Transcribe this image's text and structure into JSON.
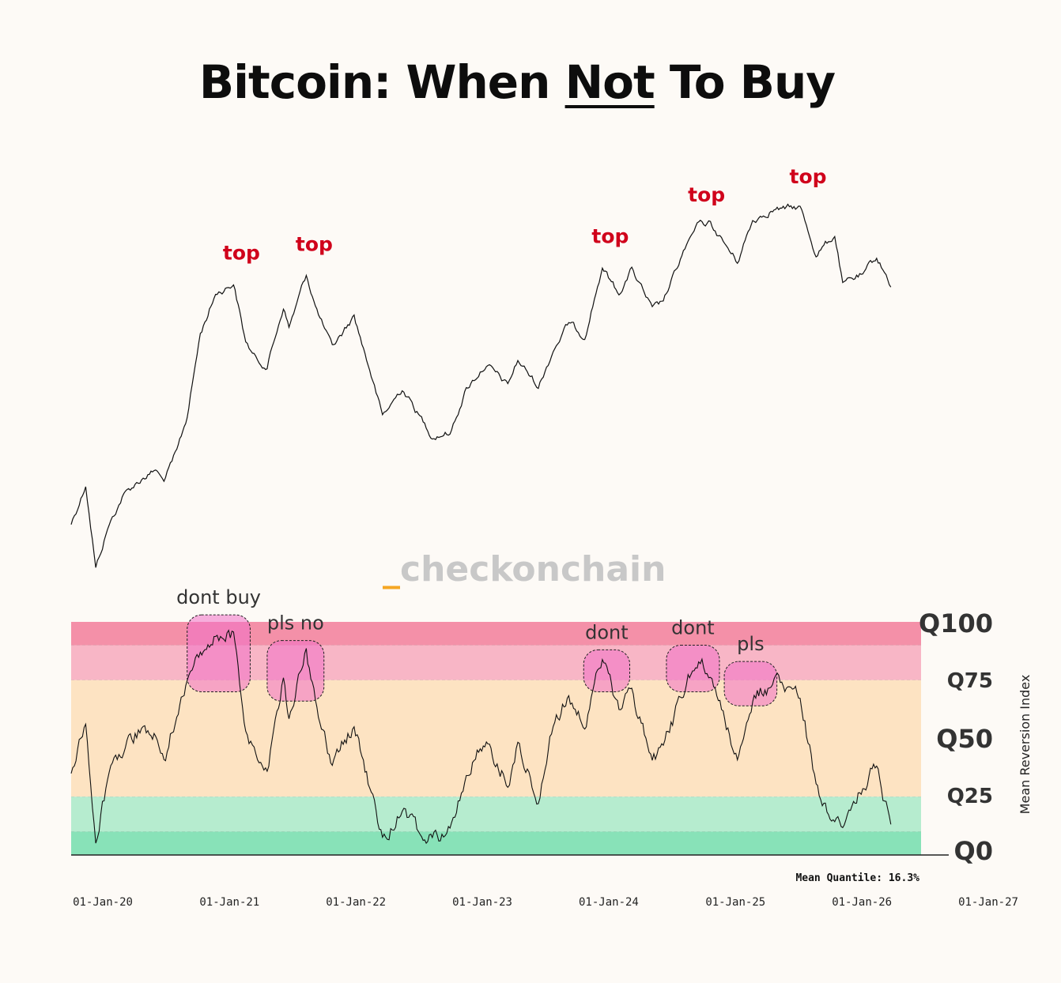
{
  "title": {
    "before": "Bitcoin: When ",
    "emphasis": "Not",
    "after": " To Buy"
  },
  "watermark": {
    "prefix": "_",
    "text": "checkonchain"
  },
  "colors": {
    "price_line": "#111111",
    "band_top": "#f490a8",
    "band_upper": "#f8b6c6",
    "band_mid": "#fde3c2",
    "band_low": "#b6eccf",
    "band_bottom": "#88e2b8",
    "callout_fill": "#f06fc7",
    "top_label": "#d0021b",
    "watermark_accent": "#f5a623"
  },
  "chart_data": {
    "type": "line",
    "x_range": [
      "2020-01-01",
      "2027-01-01"
    ],
    "x_ticks": [
      "01-Jan-20",
      "01-Jan-21",
      "01-Jan-22",
      "01-Jan-23",
      "01-Jan-24",
      "01-Jan-25",
      "01-Jan-26",
      "01-Jan-27"
    ],
    "price_panel": {
      "scale": "log",
      "series_name": "",
      "points": [
        [
          "2020-01-01",
          7200
        ],
        [
          "2020-02-12",
          10300
        ],
        [
          "2020-03-12",
          4900
        ],
        [
          "2020-04-15",
          6900
        ],
        [
          "2020-06-01",
          9500
        ],
        [
          "2020-07-27",
          11000
        ],
        [
          "2020-09-01",
          11700
        ],
        [
          "2020-09-25",
          10500
        ],
        [
          "2020-11-01",
          13800
        ],
        [
          "2020-12-01",
          19000
        ],
        [
          "2021-01-08",
          40000
        ],
        [
          "2021-02-21",
          57000
        ],
        [
          "2021-04-14",
          63000
        ],
        [
          "2021-05-19",
          37000
        ],
        [
          "2021-06-22",
          31000
        ],
        [
          "2021-07-20",
          30000
        ],
        [
          "2021-09-05",
          51000
        ],
        [
          "2021-09-21",
          42000
        ],
        [
          "2021-11-10",
          68000
        ],
        [
          "2021-12-15",
          47000
        ],
        [
          "2022-01-24",
          35000
        ],
        [
          "2022-03-28",
          47000
        ],
        [
          "2022-05-12",
          29000
        ],
        [
          "2022-06-18",
          19000
        ],
        [
          "2022-08-14",
          24500
        ],
        [
          "2022-09-30",
          19400
        ],
        [
          "2022-11-09",
          16000
        ],
        [
          "2022-12-30",
          16500
        ],
        [
          "2023-02-15",
          24500
        ],
        [
          "2023-04-14",
          30500
        ],
        [
          "2023-06-15",
          25000
        ],
        [
          "2023-07-14",
          31500
        ],
        [
          "2023-09-11",
          25000
        ],
        [
          "2023-10-24",
          34500
        ],
        [
          "2023-12-08",
          44000
        ],
        [
          "2024-01-23",
          39000
        ],
        [
          "2024-03-14",
          73000
        ],
        [
          "2024-05-01",
          57000
        ],
        [
          "2024-06-07",
          71000
        ],
        [
          "2024-08-05",
          50000
        ],
        [
          "2024-09-06",
          53000
        ],
        [
          "2024-11-12",
          89000
        ],
        [
          "2024-12-17",
          106000
        ],
        [
          "2025-01-20",
          108000
        ],
        [
          "2025-04-08",
          76000
        ],
        [
          "2025-05-22",
          111000
        ],
        [
          "2025-07-14",
          122000
        ],
        [
          "2025-08-14",
          123000
        ],
        [
          "2025-10-06",
          125000
        ],
        [
          "2025-11-21",
          82000
        ],
        [
          "2026-01-14",
          97000
        ],
        [
          "2026-02-06",
          63000
        ],
        [
          "2026-04-05",
          68000
        ],
        [
          "2026-05-15",
          80000
        ],
        [
          "2026-06-25",
          62000
        ]
      ],
      "annotations": [
        "top",
        "top",
        "top",
        "top",
        "top"
      ]
    },
    "oscillator_panel": {
      "axis_title": "Mean Reversion Index",
      "quantile_labels": [
        "Q100",
        "Q75",
        "Q50",
        "Q25",
        "Q0"
      ],
      "bands": [
        {
          "from": 0.9,
          "to": 1.0
        },
        {
          "from": 0.75,
          "to": 0.9
        },
        {
          "from": 0.25,
          "to": 0.75
        },
        {
          "from": 0.1,
          "to": 0.25
        },
        {
          "from": 0.0,
          "to": 0.1
        }
      ],
      "points": [
        [
          "2020-01-01",
          0.35
        ],
        [
          "2020-02-12",
          0.55
        ],
        [
          "2020-03-12",
          0.05
        ],
        [
          "2020-04-15",
          0.32
        ],
        [
          "2020-06-01",
          0.45
        ],
        [
          "2020-07-27",
          0.55
        ],
        [
          "2020-09-01",
          0.5
        ],
        [
          "2020-09-25",
          0.4
        ],
        [
          "2020-11-01",
          0.6
        ],
        [
          "2020-12-01",
          0.75
        ],
        [
          "2021-01-08",
          0.88
        ],
        [
          "2021-02-21",
          0.93
        ],
        [
          "2021-04-14",
          0.95
        ],
        [
          "2021-05-19",
          0.55
        ],
        [
          "2021-06-22",
          0.4
        ],
        [
          "2021-07-20",
          0.35
        ],
        [
          "2021-09-05",
          0.75
        ],
        [
          "2021-09-21",
          0.6
        ],
        [
          "2021-11-10",
          0.88
        ],
        [
          "2021-12-15",
          0.58
        ],
        [
          "2022-01-24",
          0.4
        ],
        [
          "2022-03-28",
          0.55
        ],
        [
          "2022-05-12",
          0.3
        ],
        [
          "2022-06-18",
          0.07
        ],
        [
          "2022-08-14",
          0.2
        ],
        [
          "2022-09-30",
          0.1
        ],
        [
          "2022-11-09",
          0.06
        ],
        [
          "2022-12-30",
          0.1
        ],
        [
          "2023-02-15",
          0.35
        ],
        [
          "2023-04-14",
          0.5
        ],
        [
          "2023-06-15",
          0.3
        ],
        [
          "2023-07-14",
          0.48
        ],
        [
          "2023-09-11",
          0.25
        ],
        [
          "2023-10-24",
          0.55
        ],
        [
          "2023-12-08",
          0.68
        ],
        [
          "2024-01-23",
          0.55
        ],
        [
          "2024-03-14",
          0.85
        ],
        [
          "2024-05-01",
          0.6
        ],
        [
          "2024-06-07",
          0.7
        ],
        [
          "2024-08-05",
          0.4
        ],
        [
          "2024-09-06",
          0.45
        ],
        [
          "2024-11-12",
          0.75
        ],
        [
          "2024-12-17",
          0.85
        ],
        [
          "2025-01-20",
          0.78
        ],
        [
          "2025-04-08",
          0.4
        ],
        [
          "2025-05-22",
          0.68
        ],
        [
          "2025-07-14",
          0.72
        ],
        [
          "2025-08-14",
          0.74
        ],
        [
          "2025-10-06",
          0.68
        ],
        [
          "2025-11-21",
          0.3
        ],
        [
          "2026-01-14",
          0.15
        ],
        [
          "2026-02-06",
          0.12
        ],
        [
          "2026-04-05",
          0.3
        ],
        [
          "2026-05-15",
          0.38
        ],
        [
          "2026-06-25",
          0.12
        ]
      ],
      "callouts": [
        {
          "label": "dont buy",
          "from": "2020-12-01",
          "to": "2021-06-01",
          "low": 0.7,
          "high": 1.03
        },
        {
          "label": "pls no",
          "from": "2021-07-20",
          "to": "2021-12-31",
          "low": 0.66,
          "high": 0.92
        },
        {
          "label": "dont",
          "from": "2024-01-20",
          "to": "2024-06-01",
          "low": 0.7,
          "high": 0.88
        },
        {
          "label": "dont",
          "from": "2024-09-15",
          "to": "2025-02-15",
          "low": 0.7,
          "high": 0.9
        },
        {
          "label": "pls",
          "from": "2025-03-01",
          "to": "2025-07-31",
          "low": 0.64,
          "high": 0.83
        }
      ],
      "mean_quantile_text": "Mean Quantile: 16.3%"
    }
  }
}
